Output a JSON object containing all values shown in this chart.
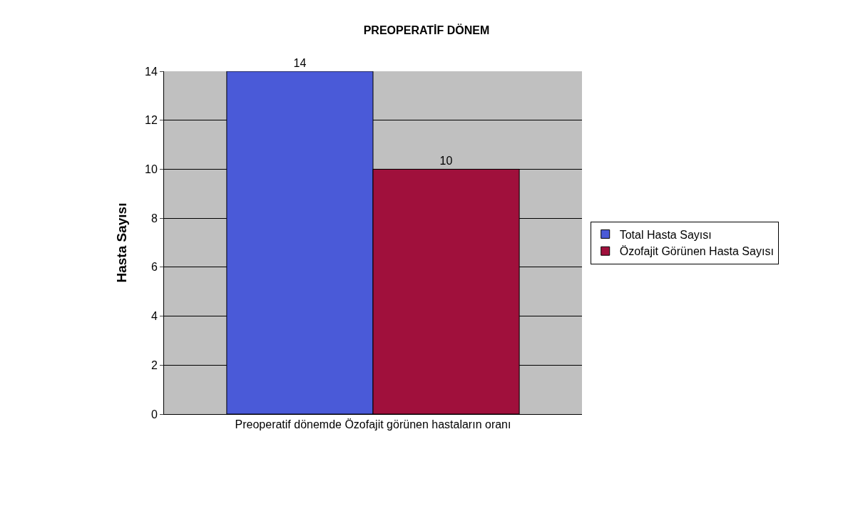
{
  "chart_data": {
    "type": "bar",
    "title": "PREOPERATİF DÖNEM",
    "ylabel": "Hasta Sayısı",
    "categories": [
      "Preoperatif dönemde Özofajit görünen hastaların oranı"
    ],
    "series": [
      {
        "name": "Total Hasta Sayısı",
        "color": "#4a5ad8",
        "values": [
          14
        ]
      },
      {
        "name": "Özofajit Görünen Hasta Sayısı",
        "color": "#a0103c",
        "values": [
          10
        ]
      }
    ],
    "ylim": [
      0,
      14
    ],
    "yticks": [
      0,
      2,
      4,
      6,
      8,
      10,
      12,
      14
    ],
    "grid": "y",
    "legend": "right",
    "data_labels": true
  }
}
